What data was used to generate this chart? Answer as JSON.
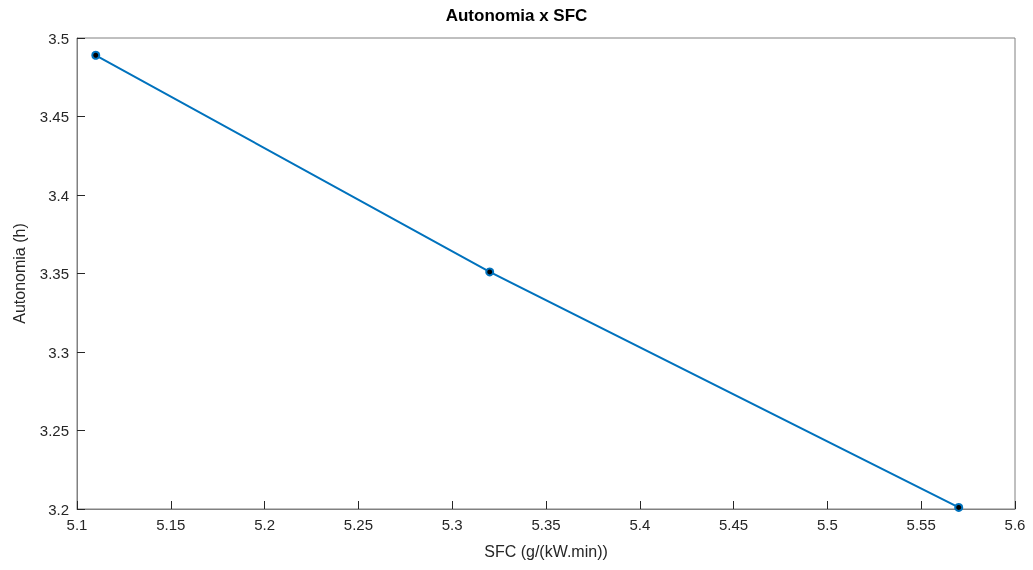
{
  "chart_data": {
    "type": "line",
    "title": "Autonomia x SFC",
    "xlabel": "SFC (g/(kW.min))",
    "ylabel": "Autonomia (h)",
    "x": [
      5.11,
      5.32,
      5.57
    ],
    "series": [
      {
        "color": "#0072bd",
        "values": [
          3.489,
          3.351,
          3.201
        ]
      }
    ],
    "xlim": [
      5.1,
      5.6
    ],
    "xticks": [
      5.1,
      5.15,
      5.2,
      5.25,
      5.3,
      5.35,
      5.4,
      5.45,
      5.5,
      5.55,
      5.6
    ],
    "ylim": [
      3.2,
      3.5
    ],
    "yticks": [
      3.2,
      3.25,
      3.3,
      3.35,
      3.4,
      3.45,
      3.5
    ],
    "grid": false,
    "marker": "circle",
    "line_style": "solid"
  }
}
